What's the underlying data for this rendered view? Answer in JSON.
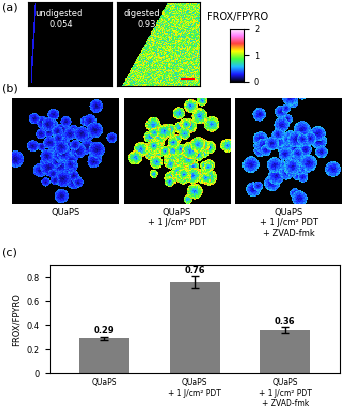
{
  "panels": {
    "a": {
      "letter": "(a)",
      "images": [
        {
          "label": "undigested",
          "value": 0.054
        },
        {
          "label": "digested",
          "value": 0.93
        }
      ],
      "colorbar": {
        "label": "FROX/FPYRO",
        "range": [
          0,
          2
        ],
        "ticks": [
          0,
          1,
          2
        ]
      }
    },
    "b": {
      "letter": "(b)",
      "labels": [
        "QUaPS",
        "QUaPS\n+ 1 J/cm² PDT",
        "QUaPS\n+ 1 J/cm² PDT\n+ ZVAD-fmk"
      ]
    },
    "c": {
      "letter": "(c)"
    }
  },
  "chart_data": {
    "type": "bar",
    "categories": [
      "QUaPS",
      "QUaPS\n+ 1 J/cm² PDT",
      "QUaPS\n+ 1 J/cm² PDT\n+ ZVAD-fmk"
    ],
    "values": [
      0.29,
      0.76,
      0.36
    ],
    "errors": [
      0.015,
      0.05,
      0.025
    ],
    "color": "#7f7f7f",
    "y_label": "FROX/FPYRO",
    "ylim": [
      0,
      0.9
    ],
    "yticks": [
      0,
      0.2,
      0.4,
      0.6,
      0.8
    ],
    "data_labels": true
  }
}
